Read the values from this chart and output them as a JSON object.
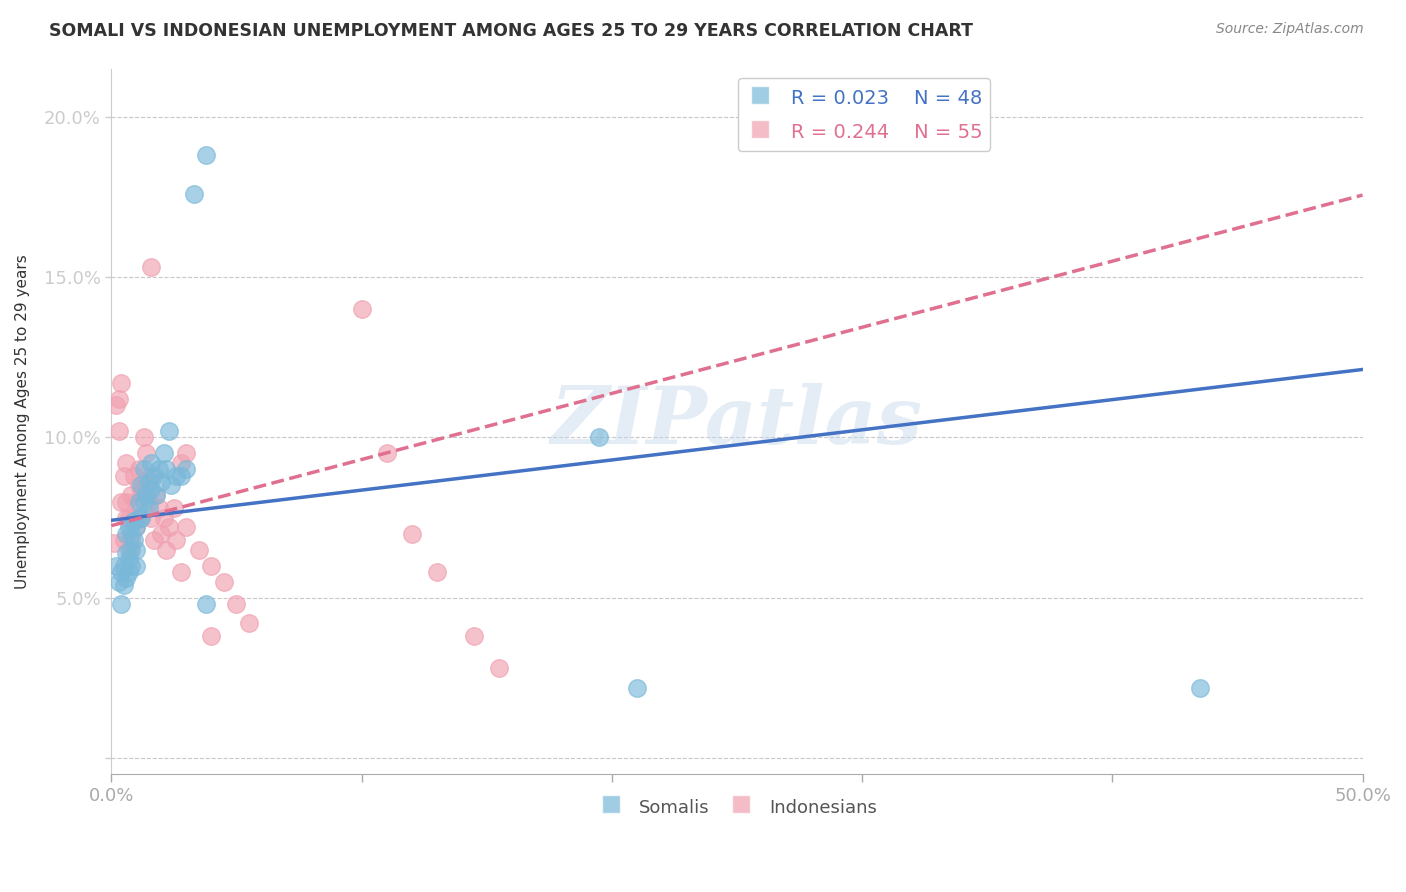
{
  "title": "SOMALI VS INDONESIAN UNEMPLOYMENT AMONG AGES 25 TO 29 YEARS CORRELATION CHART",
  "source": "Source: ZipAtlas.com",
  "ylabel": "Unemployment Among Ages 25 to 29 years",
  "xlim": [
    0,
    0.5
  ],
  "ylim": [
    -0.005,
    0.215
  ],
  "xticks": [
    0.0,
    0.1,
    0.2,
    0.3,
    0.4,
    0.5
  ],
  "xticklabels": [
    "0.0%",
    "",
    "",
    "",
    "",
    "50.0%"
  ],
  "yticks": [
    0.0,
    0.05,
    0.1,
    0.15,
    0.2
  ],
  "yticklabels": [
    "",
    "5.0%",
    "10.0%",
    "15.0%",
    "20.0%"
  ],
  "somali_color": "#7ab8d9",
  "indonesian_color": "#f0a0b0",
  "somali_R": 0.023,
  "somali_N": 48,
  "indonesian_R": 0.244,
  "indonesian_N": 55,
  "watermark_text": "ZIPatlas",
  "somali_x": [
    0.002,
    0.003,
    0.004,
    0.004,
    0.005,
    0.005,
    0.006,
    0.006,
    0.006,
    0.007,
    0.007,
    0.007,
    0.008,
    0.008,
    0.008,
    0.009,
    0.009,
    0.01,
    0.01,
    0.01,
    0.011,
    0.011,
    0.012,
    0.012,
    0.013,
    0.013,
    0.014,
    0.015,
    0.015,
    0.016,
    0.016,
    0.017,
    0.018,
    0.019,
    0.02,
    0.021,
    0.022,
    0.023,
    0.024,
    0.026,
    0.028,
    0.03,
    0.033,
    0.038,
    0.038,
    0.195,
    0.21,
    0.435
  ],
  "somali_y": [
    0.06,
    0.055,
    0.048,
    0.058,
    0.054,
    0.06,
    0.056,
    0.064,
    0.07,
    0.058,
    0.062,
    0.072,
    0.065,
    0.06,
    0.07,
    0.068,
    0.074,
    0.06,
    0.072,
    0.065,
    0.075,
    0.08,
    0.075,
    0.085,
    0.08,
    0.09,
    0.082,
    0.078,
    0.086,
    0.084,
    0.092,
    0.088,
    0.082,
    0.09,
    0.086,
    0.095,
    0.09,
    0.102,
    0.085,
    0.088,
    0.088,
    0.09,
    0.176,
    0.188,
    0.048,
    0.1,
    0.022,
    0.022
  ],
  "indonesian_x": [
    0.001,
    0.002,
    0.003,
    0.003,
    0.004,
    0.004,
    0.005,
    0.005,
    0.006,
    0.006,
    0.006,
    0.007,
    0.007,
    0.008,
    0.008,
    0.009,
    0.009,
    0.01,
    0.01,
    0.011,
    0.011,
    0.012,
    0.012,
    0.013,
    0.014,
    0.014,
    0.015,
    0.016,
    0.016,
    0.017,
    0.018,
    0.019,
    0.02,
    0.021,
    0.022,
    0.023,
    0.025,
    0.026,
    0.028,
    0.03,
    0.035,
    0.04,
    0.045,
    0.05,
    0.055,
    0.1,
    0.11,
    0.12,
    0.13,
    0.145,
    0.155,
    0.028,
    0.03,
    0.04,
    0.016
  ],
  "indonesian_y": [
    0.067,
    0.11,
    0.112,
    0.102,
    0.117,
    0.08,
    0.088,
    0.068,
    0.075,
    0.08,
    0.092,
    0.065,
    0.075,
    0.068,
    0.082,
    0.075,
    0.088,
    0.072,
    0.08,
    0.085,
    0.09,
    0.083,
    0.075,
    0.1,
    0.095,
    0.085,
    0.08,
    0.088,
    0.075,
    0.068,
    0.082,
    0.078,
    0.07,
    0.075,
    0.065,
    0.072,
    0.078,
    0.068,
    0.058,
    0.072,
    0.065,
    0.06,
    0.055,
    0.048,
    0.042,
    0.14,
    0.095,
    0.07,
    0.058,
    0.038,
    0.028,
    0.092,
    0.095,
    0.038,
    0.153
  ]
}
